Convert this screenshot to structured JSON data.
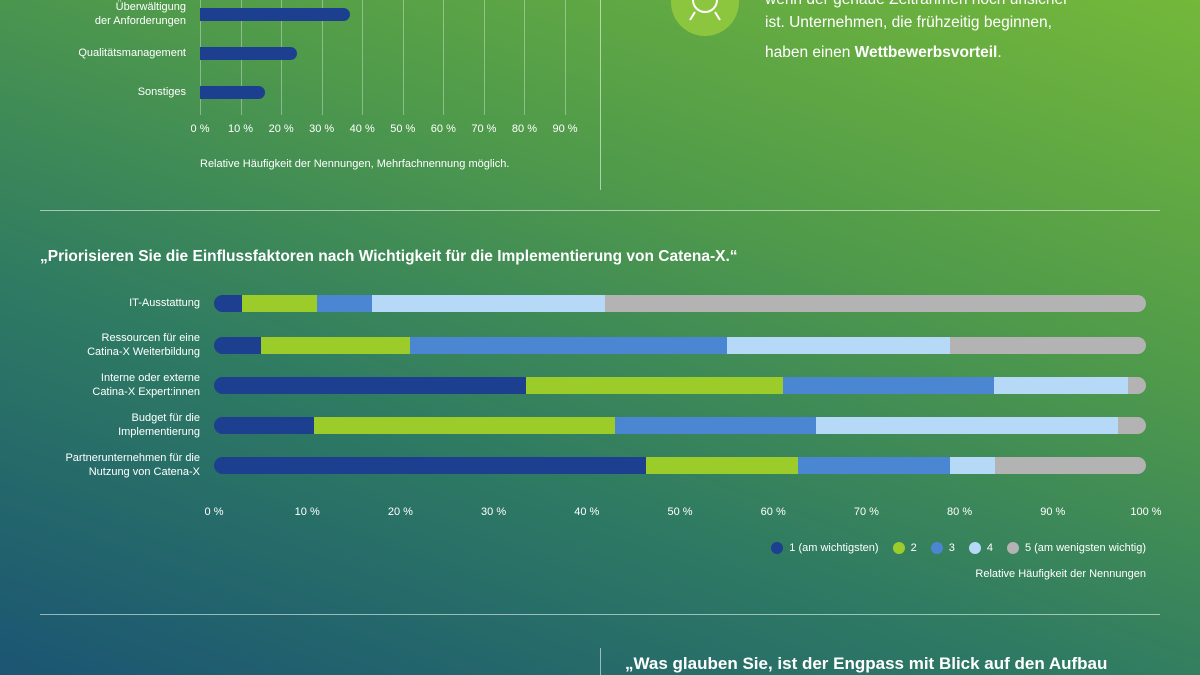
{
  "chart_data": [
    {
      "type": "bar",
      "orientation": "horizontal",
      "categories": [
        "Überwältigung\nder Anforderungen",
        "Qualitätsmanagement",
        "Sonstiges"
      ],
      "values": [
        37,
        24,
        16
      ],
      "color": "#1c3f8f",
      "xlim": [
        0,
        90
      ],
      "xticks": [
        {
          "value": 0,
          "label": "0 %"
        },
        {
          "value": 10,
          "label": "10 %"
        },
        {
          "value": 20,
          "label": "20 %"
        },
        {
          "value": 30,
          "label": "30 %"
        },
        {
          "value": 40,
          "label": "40 %"
        },
        {
          "value": 50,
          "label": "50 %"
        },
        {
          "value": 60,
          "label": "60 %"
        },
        {
          "value": 70,
          "label": "70 %"
        },
        {
          "value": 80,
          "label": "80 %"
        },
        {
          "value": 90,
          "label": "90 %"
        }
      ],
      "grid": true,
      "x_label": "Relative Häufigkeit der Nennungen, Mehrfachnennung möglich."
    },
    {
      "type": "stacked_bar",
      "orientation": "horizontal",
      "title": "„Priorisieren Sie die Einflussfaktoren nach Wichtigkeit für die Implementierung von Catena-X.“",
      "categories": [
        "IT-Ausstattung",
        "Ressourcen für eine\nCatina-X Weiterbildung",
        "Interne oder externe\nCatina-X Expert:innen",
        "Budget für die\nImplementierung",
        "Partnerunternehmen für die\nNutzung von Catena-X"
      ],
      "series": [
        {
          "name": "1 (am wichtigsten)",
          "color": "#1c3f8f",
          "values": [
            3,
            5,
            33.5,
            10.7,
            46.4
          ]
        },
        {
          "name": "2",
          "color": "#9ccc2a",
          "values": [
            8,
            16,
            27.5,
            32.3,
            16.3
          ]
        },
        {
          "name": "3",
          "color": "#4a86d2",
          "values": [
            6,
            34,
            22.7,
            21.6,
            16.3
          ]
        },
        {
          "name": "4",
          "color": "#b5d9f6",
          "values": [
            25,
            24,
            14.4,
            32.4,
            4.8
          ]
        },
        {
          "name": "5 (am wenigsten wichtig)",
          "color": "#b3b3b3",
          "values": [
            58,
            21,
            1.9,
            3,
            16.2
          ]
        }
      ],
      "xlim": [
        0,
        100
      ],
      "xticks": [
        {
          "value": 0,
          "label": "0 %"
        },
        {
          "value": 10,
          "label": "10 %"
        },
        {
          "value": 20,
          "label": "20 %"
        },
        {
          "value": 30,
          "label": "30 %"
        },
        {
          "value": 40,
          "label": "40 %"
        },
        {
          "value": 50,
          "label": "50 %"
        },
        {
          "value": 60,
          "label": "60 %"
        },
        {
          "value": 70,
          "label": "70 %"
        },
        {
          "value": 80,
          "label": "80 %"
        },
        {
          "value": 90,
          "label": "90 %"
        },
        {
          "value": 100,
          "label": "100 %"
        }
      ],
      "x_label": "Relative Häufigkeit der Nennungen"
    }
  ],
  "side_text": {
    "line1": "wenn der genaue Zeitrahmen noch unsicher",
    "line2": "ist. Unternehmen, die frühzeitig beginnen,",
    "line3_start": "haben einen ",
    "line3_bold": "Wettbewerbsvorteil",
    "line3_end": "."
  },
  "bottom_question": "„Was glauben Sie, ist der Engpass mit Blick auf den Aufbau"
}
